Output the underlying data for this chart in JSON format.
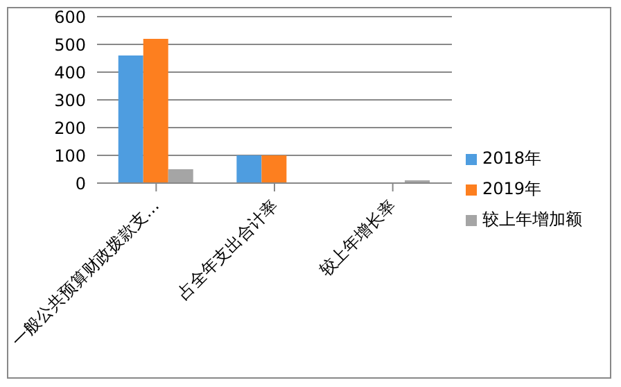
{
  "chart_data": {
    "type": "bar",
    "categories": [
      "一般公共预算财政拨款支…",
      "占全年支出合计率",
      "较上年增长率"
    ],
    "series": [
      {
        "name": "2018年",
        "color": "#4e9de0",
        "values": [
          460,
          100,
          0
        ]
      },
      {
        "name": "2019年",
        "color": "#fd7f1f",
        "values": [
          520,
          100,
          0
        ]
      },
      {
        "name": "较上年增加额",
        "color": "#a5a5a5",
        "values": [
          50,
          0,
          10
        ]
      }
    ],
    "ylim": [
      0,
      600
    ],
    "yticks": [
      0,
      100,
      200,
      300,
      400,
      500,
      600
    ],
    "grid": "y",
    "legend": "right"
  }
}
